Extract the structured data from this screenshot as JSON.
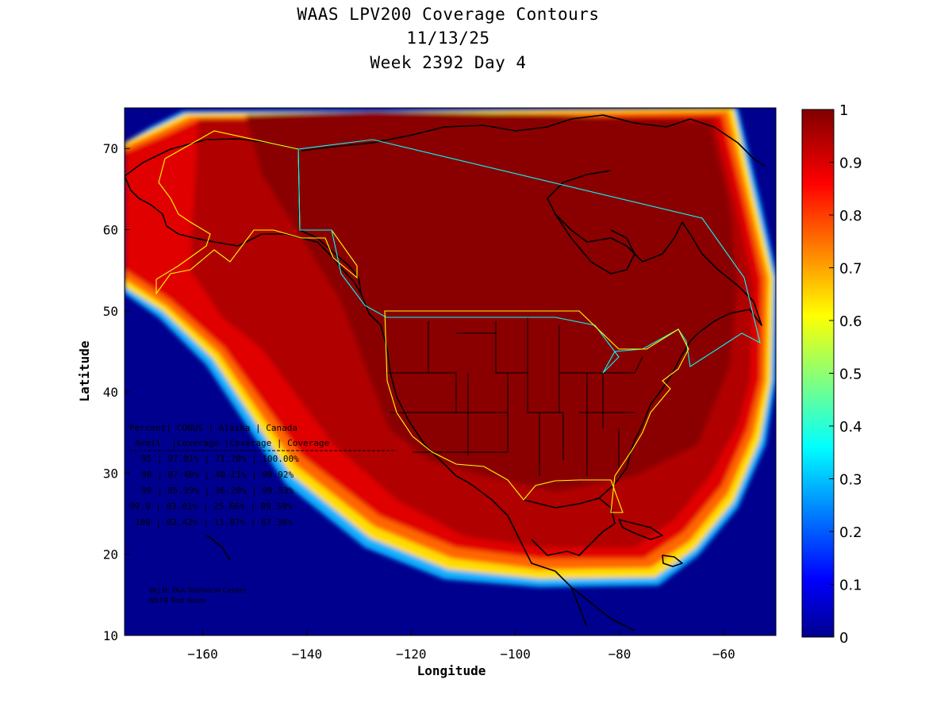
{
  "title": {
    "line1": "WAAS LPV200 Coverage Contours",
    "line2": "11/13/25",
    "line3": "Week 2392 Day 4"
  },
  "axes": {
    "xlabel": "Longitude",
    "ylabel": "Latitude",
    "xlim": [
      -175,
      -50
    ],
    "ylim": [
      10,
      75
    ],
    "xticks": [
      -160,
      -140,
      -120,
      -100,
      -80,
      -60
    ],
    "yticks": [
      10,
      20,
      30,
      40,
      50,
      60,
      70
    ]
  },
  "colorbar": {
    "range": [
      0,
      1
    ],
    "ticks": [
      "0",
      "0.1",
      "0.2",
      "0.3",
      "0.4",
      "0.5",
      "0.6",
      "0.7",
      "0.8",
      "0.9",
      "1"
    ],
    "colormap": "jet"
  },
  "colors": {
    "dark_red": "#800000",
    "red": "#e00000",
    "background_blue": "#00008f",
    "boundary_yellow": "#ffff00",
    "boundary_cyan": "#00ffff",
    "coastline": "#000000"
  },
  "stats_table": {
    "header1": [
      "Percent",
      "CONUS",
      "Alaska",
      "Canada"
    ],
    "header2": [
      "Avail.",
      "Coverage",
      "Coverage",
      "Coverage"
    ],
    "rows": [
      [
        "95",
        "97.01%",
        "71.70%",
        "100.00%"
      ],
      [
        "98",
        "87.48%",
        "40.11%",
        "99.92%"
      ],
      [
        "99",
        "85.39%",
        "36.20%",
        "99.53%"
      ],
      [
        "99.9",
        "83.01%",
        "25.66%",
        "89.58%"
      ],
      [
        "100",
        "82.42%",
        "11.87%",
        "67.36%"
      ]
    ]
  },
  "credit": {
    "line1": "W.J.H. FAA Technical Center",
    "line2": "NSTB Test Team"
  },
  "chart_data": {
    "type": "heatmap",
    "title": "WAAS LPV200 Coverage Contours 11/13/25 Week 2392 Day 4",
    "xlabel": "Longitude",
    "ylabel": "Latitude",
    "xlim": [
      -175,
      -50
    ],
    "ylim": [
      10,
      75
    ],
    "value_range": [
      0,
      1
    ],
    "regions": [
      {
        "name": "CONUS",
        "coverage_95": 0.9701
      },
      {
        "name": "Alaska",
        "coverage_95": 0.717
      },
      {
        "name": "Canada",
        "coverage_95": 1.0
      }
    ]
  }
}
